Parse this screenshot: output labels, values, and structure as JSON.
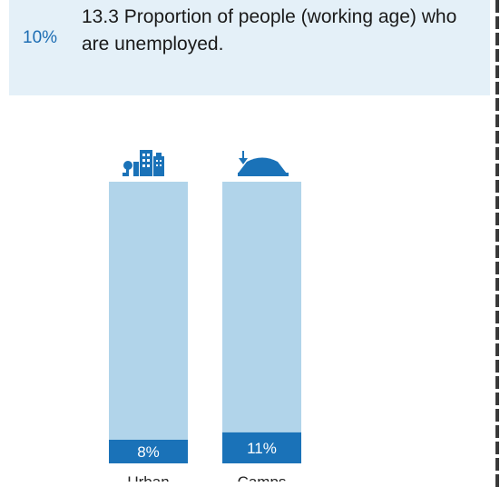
{
  "header": {
    "overall_percent": "10%",
    "indicator_title": "13.3  Proportion of people (working age) who are unemployed."
  },
  "icons": [
    "city-icon",
    "camp-tent-icon"
  ],
  "colors": {
    "bar_background": "#b1d4ea",
    "bar_fill": "#1a72b8",
    "icon": "#1a72b8",
    "header_bg": "#e4f0f8"
  },
  "chart_data": {
    "type": "bar",
    "categories": [
      "Urban",
      "Camps"
    ],
    "values": [
      8,
      11
    ],
    "value_labels": [
      "8%",
      "11%"
    ],
    "ylim": [
      0,
      100
    ]
  }
}
